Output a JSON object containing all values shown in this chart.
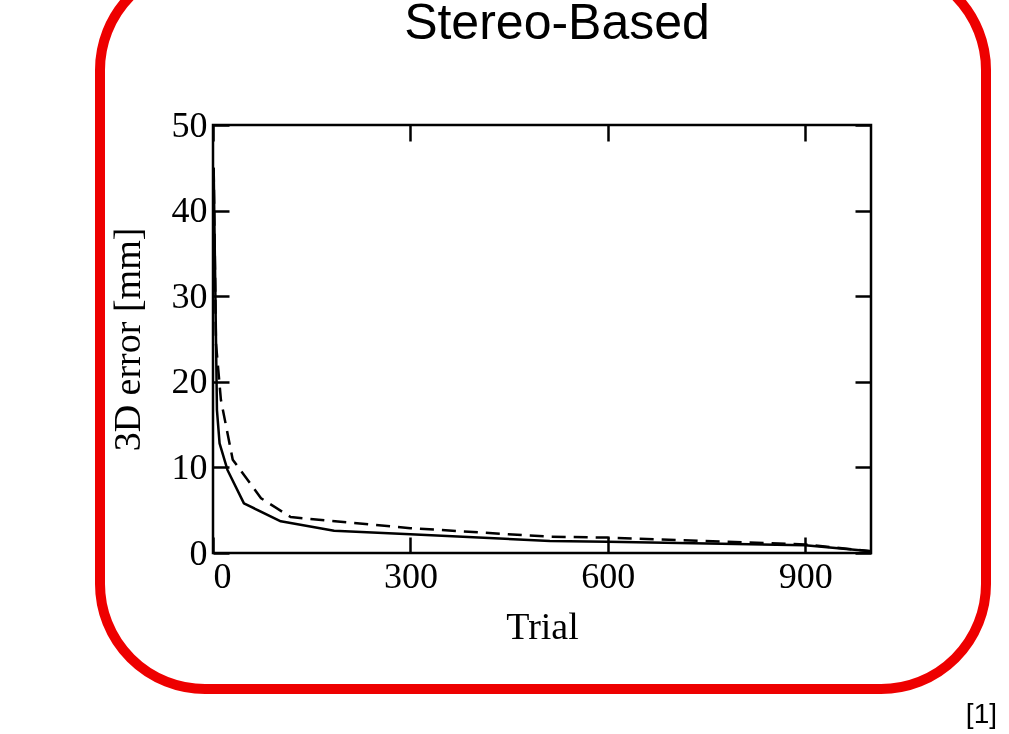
{
  "chart_data": {
    "type": "line",
    "title": "Stereo-Based",
    "xlabel": "Trial",
    "ylabel": "3D error [mm]",
    "annotations": [
      "[1]"
    ],
    "x": [
      1,
      6,
      10,
      22,
      47,
      103,
      184,
      300,
      512,
      600,
      900,
      1000
    ],
    "xlim": [
      0,
      1000
    ],
    "ylim": [
      0,
      50
    ],
    "xticks": [
      0,
      300,
      600,
      900
    ],
    "yticks": [
      0,
      10,
      20,
      30,
      40,
      50
    ],
    "grid": false,
    "series": [
      {
        "color": "#000000",
        "line_style": "solid",
        "values": [
          45,
          16.7,
          12.8,
          9.7,
          5.8,
          3.7,
          2.6,
          2.2,
          1.4,
          1.3,
          0.9,
          0.2
        ]
      },
      {
        "color": "#000000",
        "line_style": "dashed",
        "x": [
          1,
          4.5,
          12,
          30,
          73,
          118,
          300,
          512,
          600,
          900,
          1000
        ],
        "values": [
          45,
          24.5,
          17.9,
          10.9,
          6.4,
          4.2,
          2.9,
          1.9,
          1.8,
          1.0,
          0.2
        ]
      }
    ]
  }
}
